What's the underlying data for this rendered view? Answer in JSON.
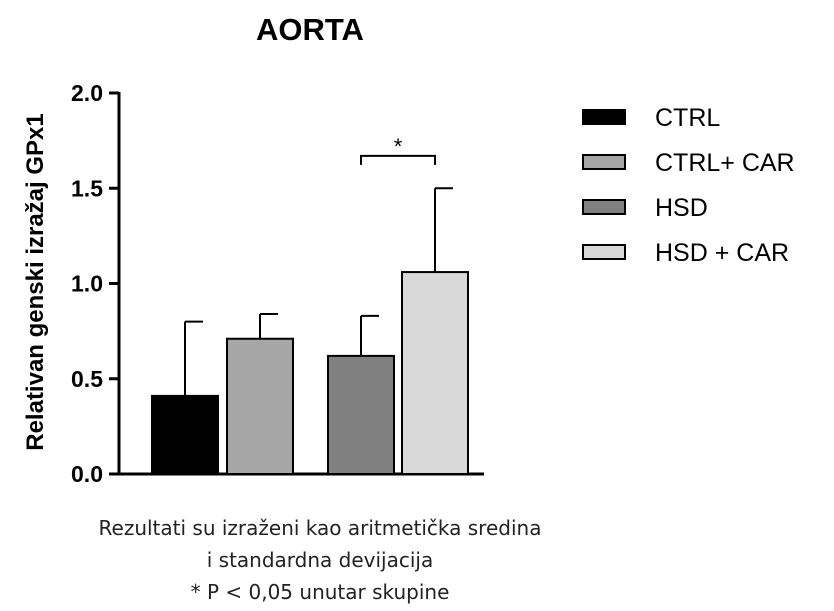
{
  "chart_data": {
    "type": "bar",
    "title": "AORTA",
    "xlabel": "",
    "ylabel": "Relativan genski izražaj GPx1",
    "ylim": [
      0,
      2.0
    ],
    "yticks": [
      "0.0",
      "0.5",
      "1.0",
      "1.5",
      "2.0"
    ],
    "grid": false,
    "legend_position": "right",
    "categories": [
      "CTRL",
      "CTRL+ CAR",
      "HSD",
      "HSD + CAR"
    ],
    "groups": [
      [
        0,
        1
      ],
      [
        2,
        3
      ]
    ],
    "series": [
      {
        "name": "CTRL",
        "value": 0.41,
        "error": 0.39,
        "color": "#000000"
      },
      {
        "name": "CTRL+ CAR",
        "value": 0.71,
        "error": 0.13,
        "color": "#a6a6a6"
      },
      {
        "name": "HSD",
        "value": 0.62,
        "error": 0.21,
        "color": "#808080"
      },
      {
        "name": "HSD + CAR",
        "value": 1.06,
        "error": 0.44,
        "color": "#d9d9d9"
      }
    ],
    "annotations": [
      {
        "label": "*",
        "between": [
          2,
          3
        ],
        "y": 1.67
      }
    ]
  },
  "footnote": {
    "line1": "Rezultati su izraženi kao aritmetička sredina",
    "line2": "i standardna devijacija",
    "line3": "* P < 0,05 unutar skupine"
  }
}
